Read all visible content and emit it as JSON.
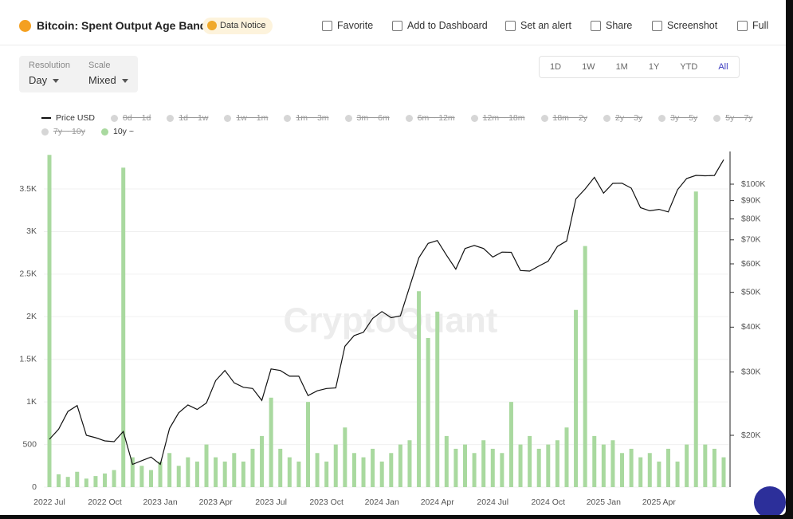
{
  "header": {
    "title": "Bitcoin: Spent Output Age Bands",
    "notice": "Data Notice",
    "toolbar": [
      "Favorite",
      "Add to Dashboard",
      "Set an alert",
      "Share",
      "Screenshot",
      "Full"
    ]
  },
  "controls": {
    "resolution": {
      "label": "Resolution",
      "value": "Day"
    },
    "scale": {
      "label": "Scale",
      "value": "Mixed"
    },
    "ranges": [
      "1D",
      "1W",
      "1M",
      "1Y",
      "YTD",
      "All"
    ],
    "active_range": "All"
  },
  "chart_data": {
    "type": "combo",
    "watermark": "CryptoQuant",
    "categories": [
      "2022 Jul",
      null,
      null,
      null,
      null,
      null,
      "2022 Oct",
      null,
      null,
      null,
      null,
      null,
      "2023 Jan",
      null,
      null,
      null,
      null,
      null,
      "2023 Apr",
      null,
      null,
      null,
      null,
      null,
      "2023 Jul",
      null,
      null,
      null,
      null,
      null,
      "2023 Oct",
      null,
      null,
      null,
      null,
      null,
      "2024 Jan",
      null,
      null,
      null,
      null,
      null,
      "2024 Apr",
      null,
      null,
      null,
      null,
      null,
      "2024 Jul",
      null,
      null,
      null,
      null,
      null,
      "2024 Oct",
      null,
      null,
      null,
      null,
      null,
      "2025 Jan",
      null,
      null,
      null,
      null,
      null,
      "2025 Apr",
      null,
      null,
      null,
      null,
      null,
      null,
      null
    ],
    "series": [
      {
        "name": "Price USD",
        "type": "line",
        "axis": "y2",
        "color": "#111111",
        "values": [
          19500,
          20800,
          23300,
          24200,
          20000,
          19700,
          19300,
          19200,
          20500,
          16600,
          17000,
          17400,
          16600,
          20900,
          23100,
          24300,
          23600,
          24600,
          28400,
          30300,
          28000,
          27200,
          27000,
          25000,
          30600,
          30300,
          29200,
          29200,
          25800,
          26600,
          27000,
          27100,
          35400,
          37900,
          38700,
          42300,
          44200,
          42500,
          43000,
          51800,
          62400,
          68400,
          69700,
          63400,
          58000,
          66200,
          67500,
          66200,
          62700,
          64700,
          64600,
          57500,
          57300,
          59200,
          61000,
          67100,
          69500,
          91000,
          97000,
          104500,
          94400,
          100500,
          100600,
          97500,
          86000,
          84300,
          85100,
          83700,
          96500,
          103700,
          105800,
          105500,
          105700,
          117000
        ]
      },
      {
        "name": "10y ~",
        "type": "bar",
        "color": "#a9d99f",
        "values": [
          3900,
          150,
          120,
          180,
          100,
          130,
          160,
          200,
          3750,
          350,
          250,
          200,
          300,
          400,
          250,
          350,
          300,
          500,
          350,
          300,
          400,
          300,
          450,
          600,
          1050,
          450,
          350,
          300,
          1000,
          400,
          300,
          500,
          700,
          400,
          350,
          450,
          300,
          400,
          500,
          550,
          2300,
          1750,
          2060,
          600,
          450,
          500,
          400,
          550,
          450,
          400,
          1000,
          500,
          600,
          450,
          500,
          550,
          700,
          2080,
          2830,
          600,
          500,
          550,
          400,
          450,
          350,
          400,
          300,
          450,
          300,
          500,
          3470,
          500,
          450,
          350
        ]
      }
    ],
    "hidden_series": [
      "0d ~ 1d",
      "1d ~ 1w",
      "1w ~ 1m",
      "1m ~ 3m",
      "3m ~ 6m",
      "6m ~ 12m",
      "12m ~ 18m",
      "18m ~ 2y",
      "2y ~ 3y",
      "3y ~ 5y",
      "5y ~ 7y",
      "7y ~ 10y"
    ],
    "hidden_color": "#d6d6d6",
    "ylim": [
      0,
      3940
    ],
    "yticks": [
      0,
      500,
      {
        "value": 1000,
        "label": "1K"
      },
      {
        "value": 1500,
        "label": "1.5K"
      },
      {
        "value": 2000,
        "label": "2K"
      },
      {
        "value": 2500,
        "label": "2.5K"
      },
      {
        "value": 3000,
        "label": "3K"
      },
      {
        "value": 3500,
        "label": "3.5K"
      }
    ],
    "y2lim": [
      14350,
      123300
    ],
    "y2scale": "log",
    "y2ticks": [
      {
        "value": 20000,
        "label": "$20K"
      },
      {
        "value": 30000,
        "label": "$30K"
      },
      {
        "value": 40000,
        "label": "$40K"
      },
      {
        "value": 50000,
        "label": "$50K"
      },
      {
        "value": 60000,
        "label": "$60K"
      },
      {
        "value": 70000,
        "label": "$70K"
      },
      {
        "value": 80000,
        "label": "$80K"
      },
      {
        "value": 90000,
        "label": "$90K"
      },
      {
        "value": 100000,
        "label": "$100K"
      }
    ],
    "grid": true
  }
}
